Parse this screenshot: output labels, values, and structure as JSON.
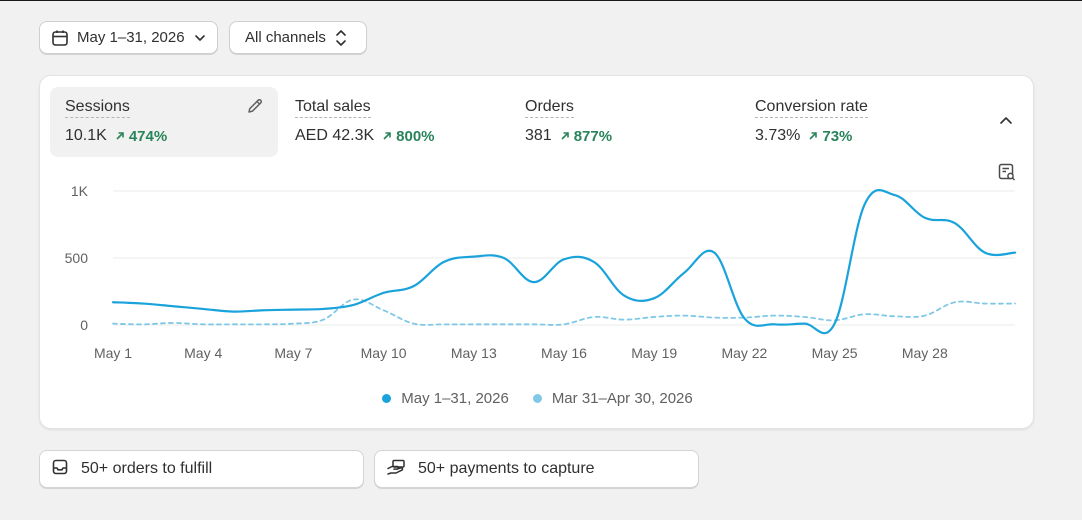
{
  "filters": {
    "date_range": "May 1–31, 2026",
    "channels": "All channels"
  },
  "metrics": [
    {
      "title": "Sessions",
      "value": "10.1K",
      "change": "474%"
    },
    {
      "title": "Total sales",
      "value": "AED 42.3K",
      "change": "800%"
    },
    {
      "title": "Orders",
      "value": "381",
      "change": "877%"
    },
    {
      "title": "Conversion rate",
      "value": "3.73%",
      "change": "73%"
    }
  ],
  "chart_data": {
    "type": "line",
    "x_tick_labels": [
      "May 1",
      "May 4",
      "May 7",
      "May 10",
      "May 13",
      "May 16",
      "May 19",
      "May 22",
      "May 25",
      "May 28"
    ],
    "y_tick_labels": [
      "1K",
      "500",
      "0"
    ],
    "ylim": [
      0,
      1000
    ],
    "days": [
      1,
      2,
      3,
      4,
      5,
      6,
      7,
      8,
      9,
      10,
      11,
      12,
      13,
      14,
      15,
      16,
      17,
      18,
      19,
      20,
      21,
      22,
      23,
      24,
      25,
      26,
      27,
      28,
      29,
      30,
      31
    ],
    "series": [
      {
        "name": "May 1–31, 2026",
        "style": "solid",
        "color": "#1aa3db",
        "values": [
          170,
          160,
          140,
          120,
          100,
          110,
          115,
          120,
          150,
          240,
          290,
          470,
          510,
          500,
          320,
          490,
          470,
          220,
          200,
          390,
          540,
          50,
          5,
          10,
          10,
          900,
          970,
          800,
          760,
          540,
          540
        ]
      },
      {
        "name": "Mar 31–Apr 30, 2026",
        "style": "dashed",
        "color": "#7fc8e6",
        "values": [
          10,
          5,
          15,
          5,
          5,
          5,
          10,
          40,
          190,
          110,
          10,
          5,
          5,
          5,
          5,
          5,
          60,
          40,
          60,
          70,
          55,
          55,
          70,
          60,
          35,
          80,
          65,
          70,
          170,
          160,
          160
        ]
      }
    ],
    "grid": true,
    "legend_position": "bottom-center"
  },
  "tasks": [
    {
      "label": "50+ orders to fulfill",
      "icon": "inbox-icon"
    },
    {
      "label": "50+ payments to capture",
      "icon": "hand-money-icon"
    }
  ],
  "colors": {
    "accent": "#1aa3db",
    "comparison": "#7fc8e6",
    "positive": "#29845a"
  }
}
